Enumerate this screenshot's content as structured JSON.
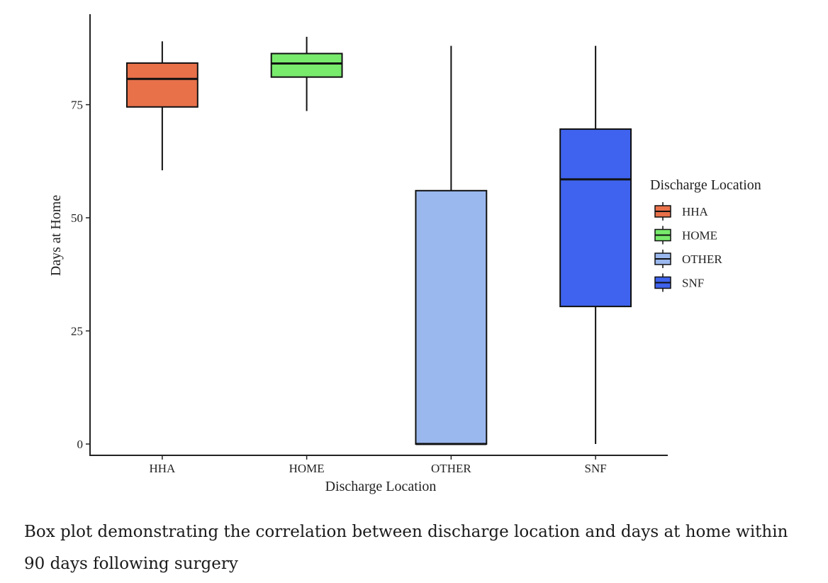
{
  "caption": " Box plot demonstrating the correlation between discharge location and days at home within 90 days following surgery",
  "chart_data": {
    "type": "box",
    "xlabel": "Discharge Location",
    "ylabel": "Days at Home",
    "ylim": [
      -2.5,
      95
    ],
    "yticks": [
      0,
      25,
      50,
      75
    ],
    "grid": false,
    "legend": {
      "title": "Discharge Location",
      "placement": "right",
      "entries": [
        "HHA",
        "HOME",
        "OTHER",
        "SNF"
      ]
    },
    "categories": [
      "HHA",
      "HOME",
      "OTHER",
      "SNF"
    ],
    "boxes": [
      {
        "category": "HHA",
        "whisker_low": 60.5,
        "q1": 74.5,
        "median": 80.7,
        "q3": 84.2,
        "whisker_high": 89,
        "color": "#e8714a"
      },
      {
        "category": "HOME",
        "whisker_low": 73.6,
        "q1": 81.1,
        "median": 84.1,
        "q3": 86.3,
        "whisker_high": 90,
        "color": "#78ea6c"
      },
      {
        "category": "OTHER",
        "whisker_low": 0,
        "q1": 0,
        "median": 0,
        "q3": 56,
        "whisker_high": 88,
        "color": "#9bb8ee"
      },
      {
        "category": "SNF",
        "whisker_low": 0,
        "q1": 30.4,
        "median": 58.5,
        "q3": 69.6,
        "whisker_high": 88,
        "color": "#3f63ee"
      }
    ]
  }
}
